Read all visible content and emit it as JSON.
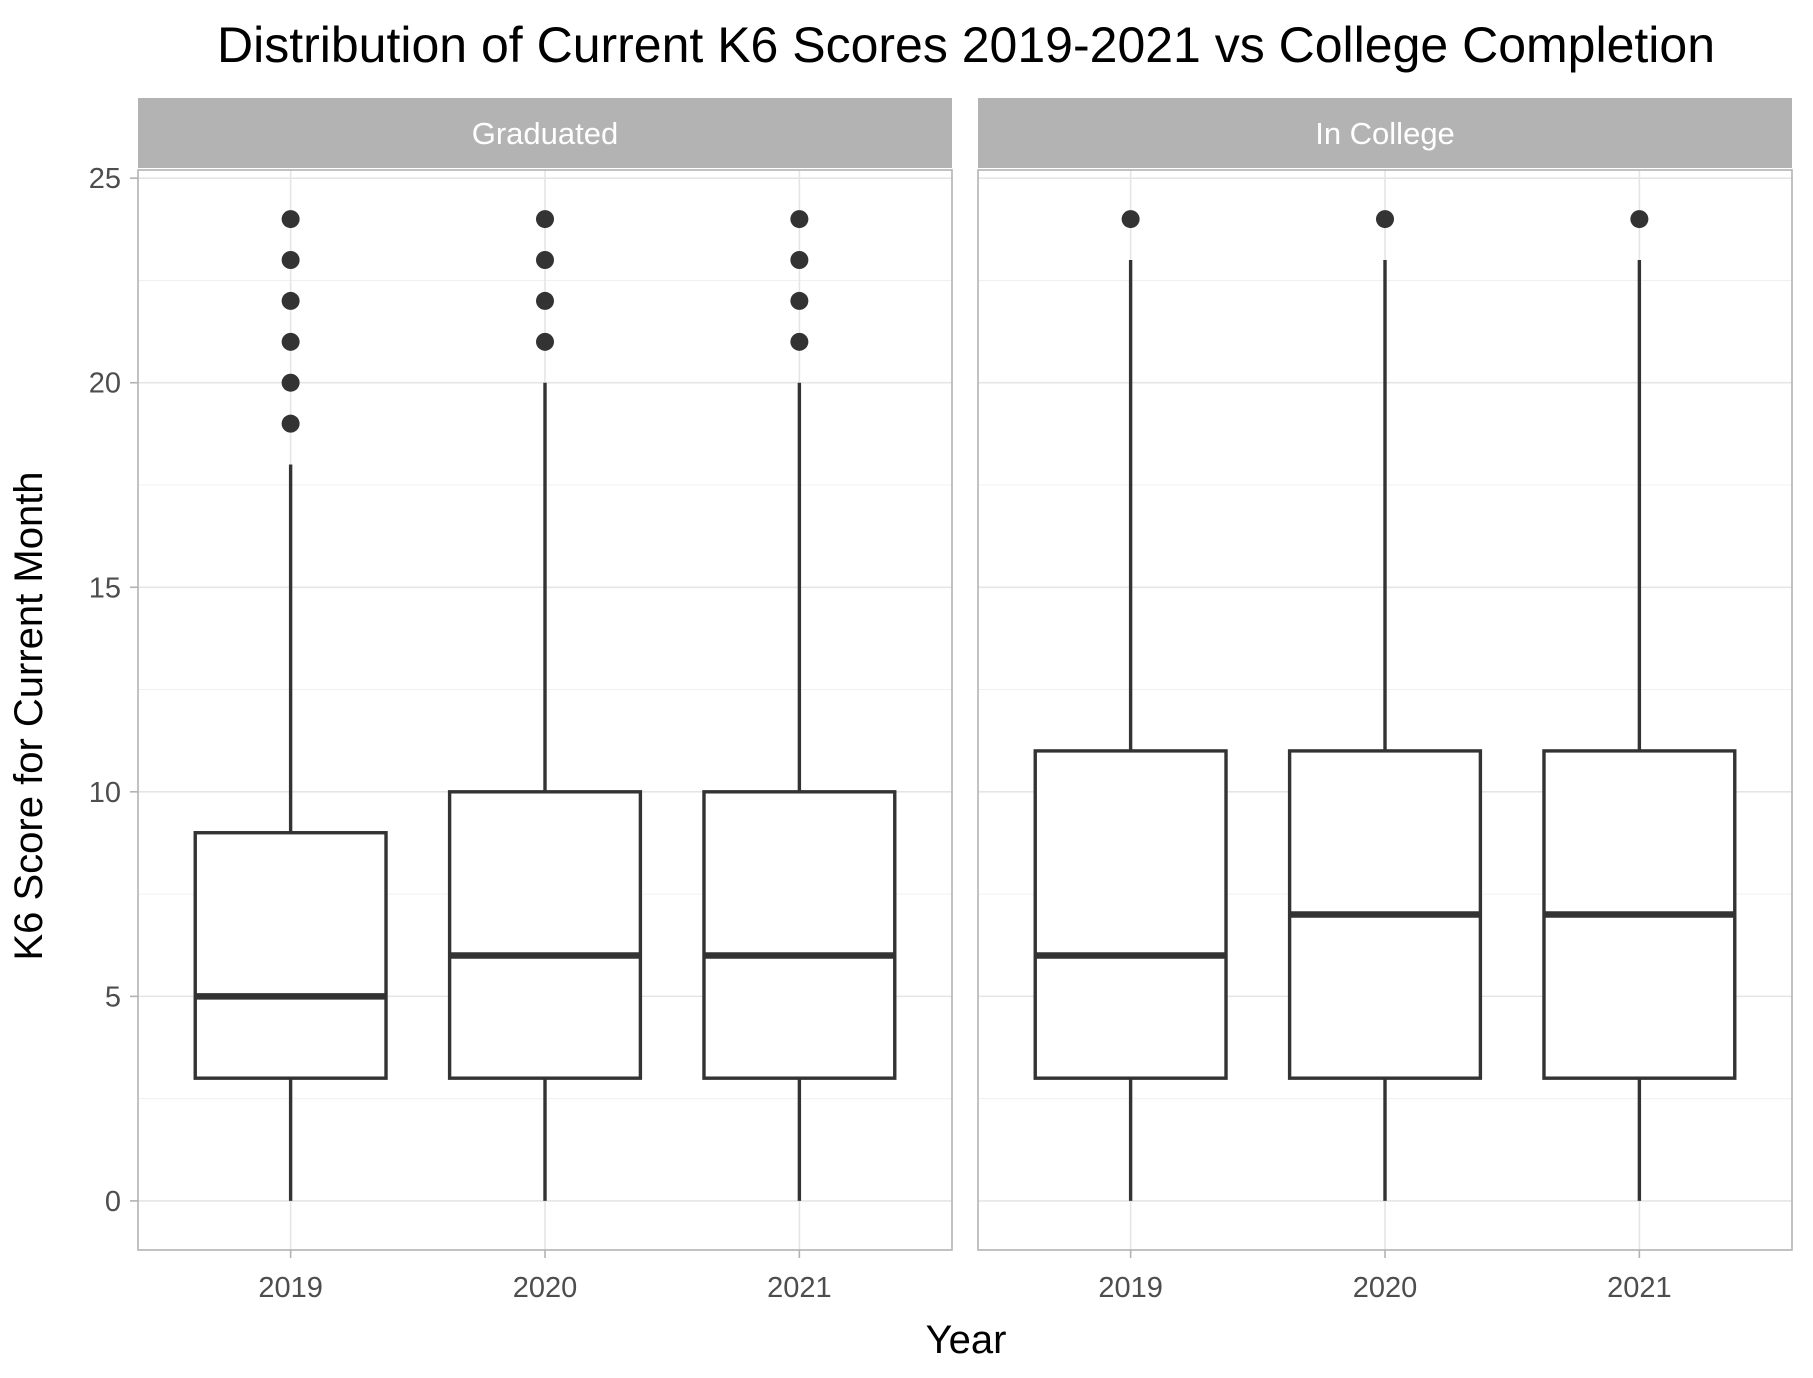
{
  "chart_data": {
    "type": "boxplot",
    "title": "Distribution of Current K6 Scores 2019-2021 vs College Completion",
    "xlabel": "Year",
    "ylabel": "K6 Score for Current Month",
    "ylim": [
      -1.2,
      25.2
    ],
    "y_ticks": [
      0,
      5,
      10,
      15,
      20,
      25
    ],
    "y_tick_labels": [
      "0",
      "5",
      "10",
      "15",
      "20",
      "25"
    ],
    "categories": [
      "2019",
      "2020",
      "2021"
    ],
    "grid": true,
    "facets": [
      {
        "label": "Graduated",
        "boxes": [
          {
            "x": "2019",
            "lower_whisker": 0,
            "q1": 3,
            "median": 5,
            "q3": 9,
            "upper_whisker": 18,
            "outliers": [
              19,
              20,
              21,
              22,
              23,
              24
            ]
          },
          {
            "x": "2020",
            "lower_whisker": 0,
            "q1": 3,
            "median": 6,
            "q3": 10,
            "upper_whisker": 20,
            "outliers": [
              21,
              22,
              23,
              24
            ]
          },
          {
            "x": "2021",
            "lower_whisker": 0,
            "q1": 3,
            "median": 6,
            "q3": 10,
            "upper_whisker": 20,
            "outliers": [
              21,
              22,
              23,
              24
            ]
          }
        ]
      },
      {
        "label": "In College",
        "boxes": [
          {
            "x": "2019",
            "lower_whisker": 0,
            "q1": 3,
            "median": 6,
            "q3": 11,
            "upper_whisker": 23,
            "outliers": [
              24
            ]
          },
          {
            "x": "2020",
            "lower_whisker": 0,
            "q1": 3,
            "median": 7,
            "q3": 11,
            "upper_whisker": 23,
            "outliers": [
              24
            ]
          },
          {
            "x": "2021",
            "lower_whisker": 0,
            "q1": 3,
            "median": 7,
            "q3": 11,
            "upper_whisker": 23,
            "outliers": [
              24
            ]
          }
        ]
      }
    ]
  }
}
